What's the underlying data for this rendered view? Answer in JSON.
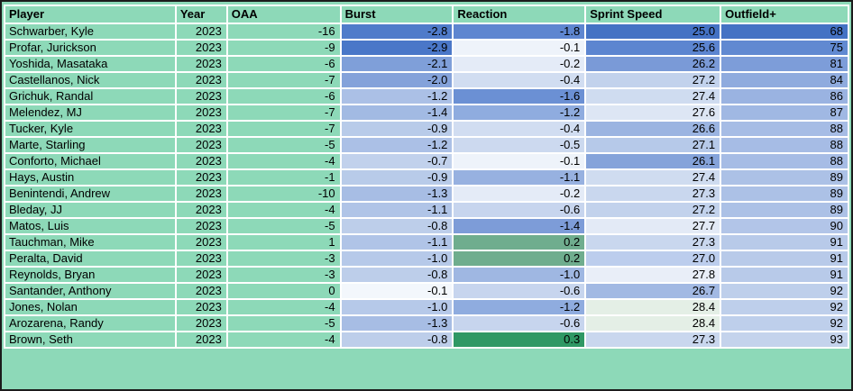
{
  "colors": {
    "table_bg": "#8dd9b8",
    "grid_line": "#ffffff",
    "outer_border": "#1b1b1b",
    "text": "#000000",
    "scale_low_blue": "#4472c4",
    "scale_mid_white": "#f5f9fd",
    "scale_high_green": "#2f9864"
  },
  "table": {
    "columns": [
      {
        "key": "player",
        "label": "Player",
        "align": "left"
      },
      {
        "key": "year",
        "label": "Year",
        "align": "right"
      },
      {
        "key": "oaa",
        "label": "OAA",
        "align": "right"
      },
      {
        "key": "burst",
        "label": "Burst",
        "align": "right"
      },
      {
        "key": "reaction",
        "label": "Reaction",
        "align": "right"
      },
      {
        "key": "sprint_speed",
        "label": "Sprint Speed",
        "align": "right"
      },
      {
        "key": "outfield_plus",
        "label": "Outfield+",
        "align": "right"
      }
    ],
    "rows": [
      {
        "cells": [
          {
            "text": "Schwarber, Kyle"
          },
          {
            "text": "2023"
          },
          {
            "text": "-16"
          },
          {
            "text": "-2.8",
            "bg": "#4f7bca"
          },
          {
            "text": "-1.8",
            "bg": "#5e86d0"
          },
          {
            "text": "25.0",
            "bg": "#4472c4"
          },
          {
            "text": "68",
            "bg": "#4472c4"
          }
        ]
      },
      {
        "cells": [
          {
            "text": "Profar, Jurickson"
          },
          {
            "text": "2023"
          },
          {
            "text": "-9"
          },
          {
            "text": "-2.9",
            "bg": "#4a77c8"
          },
          {
            "text": "-0.1",
            "bg": "#eef3fa"
          },
          {
            "text": "25.6",
            "bg": "#5c85d0"
          },
          {
            "text": "75",
            "bg": "#6189d1"
          }
        ]
      },
      {
        "cells": [
          {
            "text": "Yoshida, Masataka"
          },
          {
            "text": "2023"
          },
          {
            "text": "-6"
          },
          {
            "text": "-2.1",
            "bg": "#7f9fd9"
          },
          {
            "text": "-0.2",
            "bg": "#e4ebf7"
          },
          {
            "text": "26.2",
            "bg": "#7a9ad7"
          },
          {
            "text": "81",
            "bg": "#7d9dd9"
          }
        ]
      },
      {
        "cells": [
          {
            "text": "Castellanos, Nick"
          },
          {
            "text": "2023"
          },
          {
            "text": "-7"
          },
          {
            "text": "-2.0",
            "bg": "#84a2da"
          },
          {
            "text": "-0.4",
            "bg": "#d1ddf1"
          },
          {
            "text": "27.2",
            "bg": "#c2d2ec"
          },
          {
            "text": "84",
            "bg": "#8fabde"
          }
        ]
      },
      {
        "cells": [
          {
            "text": "Grichuk, Randal"
          },
          {
            "text": "2023"
          },
          {
            "text": "-6"
          },
          {
            "text": "-1.2",
            "bg": "#abc0e6"
          },
          {
            "text": "-1.6",
            "bg": "#6b90d4"
          },
          {
            "text": "27.4",
            "bg": "#cfdcf0"
          },
          {
            "text": "86",
            "bg": "#9ab3e1"
          }
        ]
      },
      {
        "cells": [
          {
            "text": "Melendez, MJ"
          },
          {
            "text": "2023"
          },
          {
            "text": "-7"
          },
          {
            "text": "-1.4",
            "bg": "#a2bae3"
          },
          {
            "text": "-1.2",
            "bg": "#8facdf"
          },
          {
            "text": "27.6",
            "bg": "#dde6f4"
          },
          {
            "text": "87",
            "bg": "#a0b8e3"
          }
        ]
      },
      {
        "cells": [
          {
            "text": "Tucker, Kyle"
          },
          {
            "text": "2023"
          },
          {
            "text": "-7"
          },
          {
            "text": "-0.9",
            "bg": "#b8cbe9"
          },
          {
            "text": "-0.4",
            "bg": "#d1ddf1"
          },
          {
            "text": "26.6",
            "bg": "#9bb4e1"
          },
          {
            "text": "88",
            "bg": "#a6bce5"
          }
        ]
      },
      {
        "cells": [
          {
            "text": "Marte, Starling"
          },
          {
            "text": "2023"
          },
          {
            "text": "-5"
          },
          {
            "text": "-1.2",
            "bg": "#abc0e6"
          },
          {
            "text": "-0.5",
            "bg": "#ccd9ef"
          },
          {
            "text": "27.1",
            "bg": "#b6c9e9"
          },
          {
            "text": "88",
            "bg": "#a6bce5"
          }
        ]
      },
      {
        "cells": [
          {
            "text": "Conforto, Michael"
          },
          {
            "text": "2023"
          },
          {
            "text": "-4"
          },
          {
            "text": "-0.7",
            "bg": "#c1d1ec"
          },
          {
            "text": "-0.1",
            "bg": "#eef3fa"
          },
          {
            "text": "26.1",
            "bg": "#85a3da"
          },
          {
            "text": "88",
            "bg": "#a6bce5"
          }
        ]
      },
      {
        "cells": [
          {
            "text": "Hays, Austin"
          },
          {
            "text": "2023"
          },
          {
            "text": "-1"
          },
          {
            "text": "-0.9",
            "bg": "#b8cbe9"
          },
          {
            "text": "-1.1",
            "bg": "#97b1e0"
          },
          {
            "text": "27.4",
            "bg": "#cfdcf0"
          },
          {
            "text": "89",
            "bg": "#acc1e6"
          }
        ]
      },
      {
        "cells": [
          {
            "text": "Benintendi, Andrew"
          },
          {
            "text": "2023"
          },
          {
            "text": "-10"
          },
          {
            "text": "-1.3",
            "bg": "#a7bde4"
          },
          {
            "text": "-0.2",
            "bg": "#e4ebf7"
          },
          {
            "text": "27.3",
            "bg": "#c9d7ee"
          },
          {
            "text": "89",
            "bg": "#acc1e6"
          }
        ]
      },
      {
        "cells": [
          {
            "text": "Bleday, JJ"
          },
          {
            "text": "2023"
          },
          {
            "text": "-4"
          },
          {
            "text": "-1.1",
            "bg": "#b0c4e7"
          },
          {
            "text": "-0.6",
            "bg": "#c7d5ee"
          },
          {
            "text": "27.2",
            "bg": "#c2d2ec"
          },
          {
            "text": "89",
            "bg": "#acc1e6"
          }
        ]
      },
      {
        "cells": [
          {
            "text": "Matos, Luis"
          },
          {
            "text": "2023"
          },
          {
            "text": "-5"
          },
          {
            "text": "-0.8",
            "bg": "#bdceea"
          },
          {
            "text": "-1.4",
            "bg": "#7d9cd8"
          },
          {
            "text": "27.7",
            "bg": "#e3eaf6"
          },
          {
            "text": "90",
            "bg": "#b2c5e8"
          }
        ]
      },
      {
        "cells": [
          {
            "text": "Tauchman, Mike"
          },
          {
            "text": "2023"
          },
          {
            "text": "1"
          },
          {
            "text": "-1.1",
            "bg": "#b0c4e7"
          },
          {
            "text": "0.2",
            "bg": "#6fad8e"
          },
          {
            "text": "27.3",
            "bg": "#c9d7ee"
          },
          {
            "text": "91",
            "bg": "#b8cae9"
          }
        ]
      },
      {
        "cells": [
          {
            "text": "Peralta, David"
          },
          {
            "text": "2023"
          },
          {
            "text": "-3"
          },
          {
            "text": "-1.0",
            "bg": "#b6c9e9"
          },
          {
            "text": "0.2",
            "bg": "#6fad8e"
          },
          {
            "text": "27.0",
            "bg": "#bccded"
          },
          {
            "text": "91",
            "bg": "#b8cae9"
          }
        ]
      },
      {
        "cells": [
          {
            "text": "Reynolds, Bryan"
          },
          {
            "text": "2023"
          },
          {
            "text": "-3"
          },
          {
            "text": "-0.8",
            "bg": "#bdceea"
          },
          {
            "text": "-1.0",
            "bg": "#9fb7e2"
          },
          {
            "text": "27.8",
            "bg": "#e9eef8"
          },
          {
            "text": "91",
            "bg": "#b8cae9"
          }
        ]
      },
      {
        "cells": [
          {
            "text": "Santander, Anthony"
          },
          {
            "text": "2023"
          },
          {
            "text": "0"
          },
          {
            "text": "-0.1",
            "bg": "#f3f7fc"
          },
          {
            "text": "-0.6",
            "bg": "#c7d5ee"
          },
          {
            "text": "26.7",
            "bg": "#a2b9e3"
          },
          {
            "text": "92",
            "bg": "#becfeb"
          }
        ]
      },
      {
        "cells": [
          {
            "text": "Jones, Nolan"
          },
          {
            "text": "2023"
          },
          {
            "text": "-4"
          },
          {
            "text": "-1.0",
            "bg": "#b6c9e9"
          },
          {
            "text": "-1.2",
            "bg": "#8facdf"
          },
          {
            "text": "28.4",
            "bg": "#e4efe6"
          },
          {
            "text": "92",
            "bg": "#becfeb"
          }
        ]
      },
      {
        "cells": [
          {
            "text": "Arozarena, Randy"
          },
          {
            "text": "2023"
          },
          {
            "text": "-5"
          },
          {
            "text": "-1.3",
            "bg": "#a7bde4"
          },
          {
            "text": "-0.6",
            "bg": "#c7d5ee"
          },
          {
            "text": "28.4",
            "bg": "#e4efe6"
          },
          {
            "text": "92",
            "bg": "#becfeb"
          }
        ]
      },
      {
        "cells": [
          {
            "text": "Brown, Seth"
          },
          {
            "text": "2023"
          },
          {
            "text": "-4"
          },
          {
            "text": "-0.8",
            "bg": "#bdceea"
          },
          {
            "text": "0.3",
            "bg": "#2f9864"
          },
          {
            "text": "27.3",
            "bg": "#c9d7ee"
          },
          {
            "text": "93",
            "bg": "#c4d3ec"
          }
        ]
      }
    ]
  }
}
